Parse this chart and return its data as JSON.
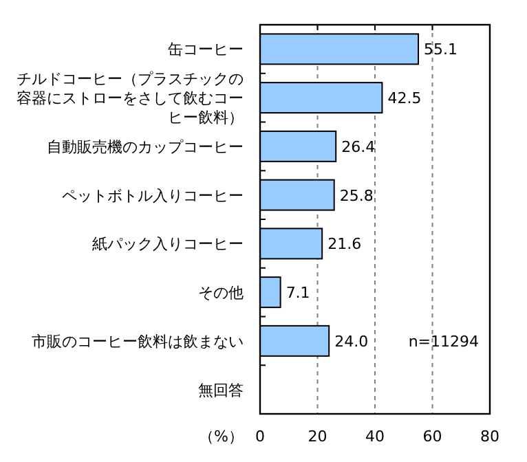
{
  "chart_data": {
    "type": "bar",
    "orientation": "horizontal",
    "categories": [
      "缶コーヒー",
      "チルドコーヒー（プラスチックの容器にストローをさして飲むコーヒー飲料）",
      "自動販売機のカップコーヒー",
      "ペットボトル入りコーヒー",
      "紙パック入りコーヒー",
      "その他",
      "市販のコーヒー飲料は飲まない",
      "無回答"
    ],
    "values": [
      55.1,
      42.5,
      26.4,
      25.8,
      21.6,
      7.1,
      24.0,
      null
    ],
    "value_labels": [
      "55.1",
      "42.5",
      "26.4",
      "25.8",
      "21.6",
      "7.1",
      "24.0",
      null
    ],
    "color": "#99ccff",
    "xlabel": "（%）",
    "xlim": [
      0,
      80
    ],
    "xticks": [
      0,
      20,
      40,
      60,
      80
    ],
    "grid": "x",
    "annotations": [
      "n=11294"
    ]
  }
}
